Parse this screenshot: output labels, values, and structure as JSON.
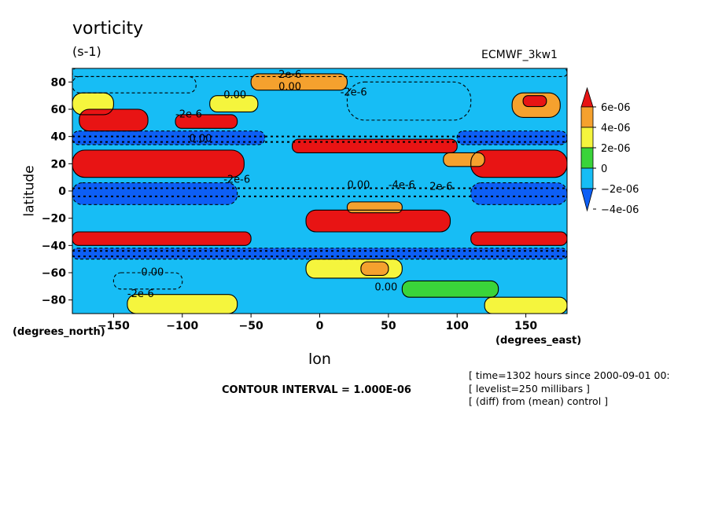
{
  "chart_data": {
    "type": "heatmap",
    "title": "vorticity",
    "units": "(s-1)",
    "dataset_label": "ECMWF_3kw1",
    "xlabel": "lon",
    "ylabel": "latitude",
    "x_units": "(degrees_east)",
    "y_units": "(degrees_north)",
    "xlim": [
      -180,
      180
    ],
    "ylim": [
      -90,
      90
    ],
    "x_ticks": [
      -150,
      -100,
      -50,
      0,
      50,
      100,
      150
    ],
    "y_ticks": [
      -80,
      -60,
      -40,
      -20,
      0,
      20,
      40,
      60,
      80
    ],
    "x_tick_labels": [
      "−150",
      "−100",
      "−50",
      "0",
      "50",
      "100",
      "150"
    ],
    "y_tick_labels": [
      "−80",
      "−60",
      "−40",
      "−20",
      "0",
      "20",
      "40",
      "60",
      "80"
    ],
    "colorbar": {
      "labels": [
        "6e-06",
        "4e-06",
        "2e-06",
        "0",
        "−2e-06",
        "−4e-06"
      ],
      "colors": [
        "#0d5ff5",
        "#17bdf5",
        "#3ad43a",
        "#f5f53d",
        "#f5a12e",
        "#e81414"
      ],
      "levels": [
        -6e-06,
        -4e-06,
        -2e-06,
        0,
        2e-06,
        4e-06,
        6e-06
      ]
    },
    "contour_interval_text": "CONTOUR INTERVAL = 1.000E-06",
    "contour_labels": [
      "2e-6",
      "0.00",
      "-2e-6",
      "0.00",
      "-2e-6",
      "0.00",
      "-2e-6",
      "0.00",
      "-4e-6",
      "2e-6",
      "0.00",
      "-2e-6",
      "0.00"
    ],
    "bands": [
      {
        "lat": [
          90,
          84
        ],
        "lon": [
          -180,
          180
        ],
        "level": -2
      },
      {
        "lat": [
          84,
          72
        ],
        "lon": [
          -180,
          -90
        ],
        "level": -1
      },
      {
        "lat": [
          72,
          56
        ],
        "lon": [
          -180,
          -150
        ],
        "level": 3
      },
      {
        "lat": [
          60,
          44
        ],
        "lon": [
          -175,
          -125
        ],
        "level": 5
      },
      {
        "lat": [
          56,
          46
        ],
        "lon": [
          -105,
          -60
        ],
        "level": 5
      },
      {
        "lat": [
          70,
          58
        ],
        "lon": [
          -80,
          -45
        ],
        "level": 2
      },
      {
        "lat": [
          86,
          74
        ],
        "lon": [
          -50,
          20
        ],
        "level": 4
      },
      {
        "lat": [
          72,
          54
        ],
        "lon": [
          140,
          175
        ],
        "level": 4
      },
      {
        "lat": [
          70,
          62
        ],
        "lon": [
          148,
          165
        ],
        "level": 5
      },
      {
        "lat": [
          80,
          52
        ],
        "lon": [
          20,
          110
        ],
        "level": -2
      },
      {
        "lat": [
          44,
          34
        ],
        "lon": [
          -180,
          -40
        ],
        "level": -3
      },
      {
        "lat": [
          44,
          34
        ],
        "lon": [
          100,
          180
        ],
        "level": -3
      },
      {
        "lat": [
          30,
          10
        ],
        "lon": [
          -180,
          -55
        ],
        "level": 5
      },
      {
        "lat": [
          30,
          10
        ],
        "lon": [
          110,
          180
        ],
        "level": 5
      },
      {
        "lat": [
          38,
          28
        ],
        "lon": [
          -20,
          100
        ],
        "level": 5
      },
      {
        "lat": [
          28,
          18
        ],
        "lon": [
          90,
          120
        ],
        "level": 4
      },
      {
        "lat": [
          6,
          -10
        ],
        "lon": [
          -180,
          -60
        ],
        "level": -3
      },
      {
        "lat": [
          6,
          -10
        ],
        "lon": [
          110,
          180
        ],
        "level": -3
      },
      {
        "lat": [
          -14,
          -30
        ],
        "lon": [
          -10,
          95
        ],
        "level": 5
      },
      {
        "lat": [
          -8,
          -16
        ],
        "lon": [
          20,
          60
        ],
        "level": 4
      },
      {
        "lat": [
          -30,
          -40
        ],
        "lon": [
          -180,
          -50
        ],
        "level": 5
      },
      {
        "lat": [
          -30,
          -40
        ],
        "lon": [
          110,
          180
        ],
        "level": 5
      },
      {
        "lat": [
          -42,
          -50
        ],
        "lon": [
          -180,
          180
        ],
        "level": -3
      },
      {
        "lat": [
          -50,
          -64
        ],
        "lon": [
          -10,
          60
        ],
        "level": 3
      },
      {
        "lat": [
          -52,
          -62
        ],
        "lon": [
          30,
          50
        ],
        "level": 4
      },
      {
        "lat": [
          -60,
          -72
        ],
        "lon": [
          -150,
          -100
        ],
        "level": -2
      },
      {
        "lat": [
          -76,
          -90
        ],
        "lon": [
          -140,
          -60
        ],
        "level": 2
      },
      {
        "lat": [
          -78,
          -90
        ],
        "lon": [
          120,
          180
        ],
        "level": 2
      },
      {
        "lat": [
          -66,
          -78
        ],
        "lon": [
          60,
          130
        ],
        "level": 1
      }
    ]
  },
  "meta": [
    "[ time=1302 hours since 2000-09-01 00:",
    "[ levelist=250 millibars ]",
    "[ (diff) from (mean) control ]"
  ]
}
